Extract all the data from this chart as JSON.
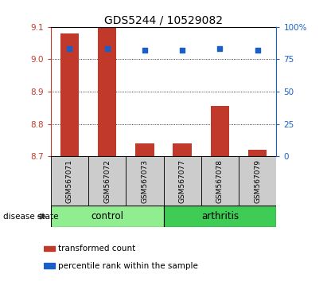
{
  "title": "GDS5244 / 10529082",
  "samples": [
    "GSM567071",
    "GSM567072",
    "GSM567073",
    "GSM567077",
    "GSM567078",
    "GSM567079"
  ],
  "transformed_counts": [
    9.08,
    9.1,
    8.74,
    8.74,
    8.855,
    8.72
  ],
  "percentile_ranks": [
    83,
    83,
    82,
    82,
    83,
    82
  ],
  "bar_bottom": 8.7,
  "ylim_left": [
    8.7,
    9.1
  ],
  "ylim_right": [
    0,
    100
  ],
  "yticks_left": [
    8.7,
    8.8,
    8.9,
    9.0,
    9.1
  ],
  "yticks_right": [
    0,
    25,
    50,
    75,
    100
  ],
  "ytick_labels_right": [
    "0",
    "25",
    "50",
    "75",
    "100%"
  ],
  "bar_color": "#C0392B",
  "dot_color": "#1a5fc8",
  "control_label": "control",
  "arthritis_label": "arthritis",
  "control_color": "#90EE90",
  "arthritis_color": "#3ECC55",
  "disease_state_label": "disease state",
  "legend_tc_label": "transformed count",
  "legend_pr_label": "percentile rank within the sample",
  "left_axis_color": "#C0392B",
  "right_axis_color": "#1a5fc8",
  "sample_bg_color": "#cccccc"
}
